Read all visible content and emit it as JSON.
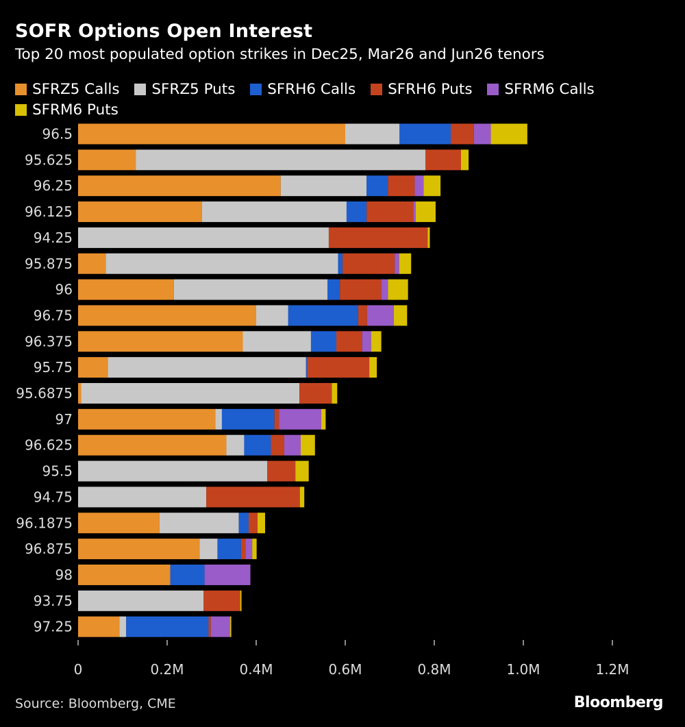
{
  "chart_data": {
    "type": "bar",
    "orientation": "horizontal",
    "stacked": true,
    "title": "SOFR Options Open Interest",
    "subtitle": "Top 20 most populated option strikes in Dec25, Mar26 and Jun26 tenors",
    "categories": [
      "96.5",
      "95.625",
      "96.25",
      "96.125",
      "94.25",
      "95.875",
      "96",
      "96.75",
      "96.375",
      "95.75",
      "95.6875",
      "97",
      "96.625",
      "95.5",
      "94.75",
      "96.1875",
      "96.875",
      "98",
      "93.75",
      "97.25"
    ],
    "series": [
      {
        "name": "SFRZ5 Calls",
        "color": "#e8902c",
        "values": [
          600000,
          130000,
          455000,
          278000,
          0,
          62000,
          215000,
          400000,
          370000,
          67000,
          7000,
          308000,
          333000,
          0,
          0,
          183000,
          273000,
          207000,
          0,
          93000
        ]
      },
      {
        "name": "SFRZ5 Puts",
        "color": "#c8c8c8",
        "values": [
          122000,
          650000,
          193000,
          325000,
          563000,
          522000,
          345000,
          72000,
          153000,
          445000,
          490000,
          15000,
          40000,
          425000,
          288000,
          178000,
          40000,
          0,
          282000,
          15000
        ]
      },
      {
        "name": "SFRH6 Calls",
        "color": "#1e5fd0",
        "values": [
          115000,
          0,
          48000,
          45000,
          0,
          10000,
          28000,
          157000,
          57000,
          2000,
          0,
          118000,
          60000,
          0,
          0,
          22000,
          53000,
          77000,
          0,
          185000
        ]
      },
      {
        "name": "SFRH6 Puts",
        "color": "#c4431f",
        "values": [
          52000,
          80000,
          60000,
          105000,
          222000,
          117000,
          93000,
          20000,
          58000,
          140000,
          73000,
          10000,
          30000,
          63000,
          210000,
          20000,
          10000,
          0,
          82000,
          5000
        ]
      },
      {
        "name": "SFRM6 Calls",
        "color": "#9a5cc9",
        "values": [
          38000,
          0,
          20000,
          5000,
          0,
          10000,
          15000,
          60000,
          20000,
          0,
          0,
          95000,
          37000,
          0,
          0,
          0,
          15000,
          103000,
          0,
          43000
        ]
      },
      {
        "name": "SFRM6 Puts",
        "color": "#d9c000",
        "values": [
          82000,
          17000,
          38000,
          45000,
          5000,
          27000,
          45000,
          30000,
          23000,
          17000,
          12000,
          10000,
          32000,
          30000,
          10000,
          17000,
          10000,
          0,
          3000,
          3000
        ]
      }
    ],
    "xlim": [
      0,
      1300000
    ],
    "xticks": [
      0,
      200000,
      400000,
      600000,
      800000,
      1000000,
      1200000
    ],
    "xtick_labels": [
      "0",
      "0.2M",
      "0.4M",
      "0.6M",
      "0.8M",
      "1.0M",
      "1.2M"
    ],
    "xlabel": "",
    "ylabel": "",
    "legend_position": "top-left"
  },
  "footer": {
    "source": "Source: Bloomberg, CME",
    "brand": "Bloomberg"
  }
}
